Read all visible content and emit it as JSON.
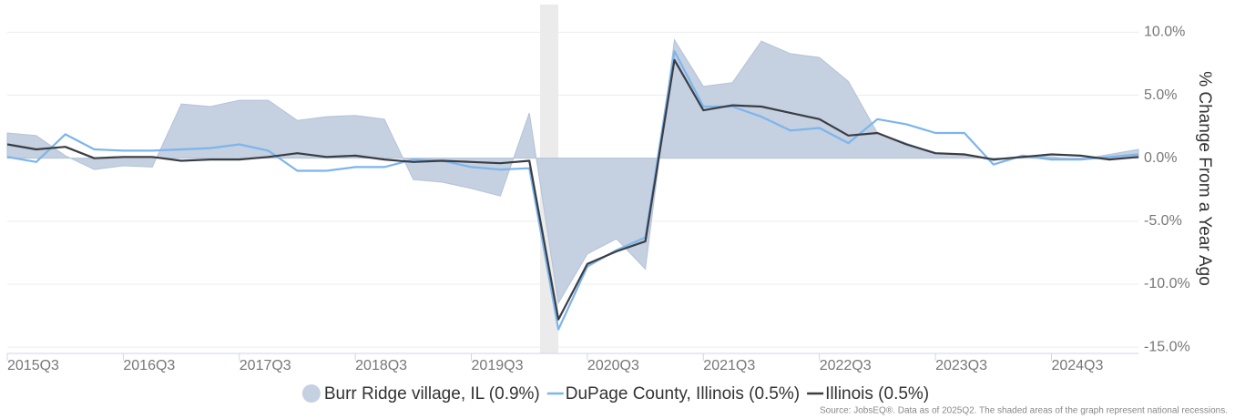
{
  "chart_data": {
    "type": "line",
    "y_label": "% Change From a Year Ago",
    "source": "Source: JobsEQ®. Data as of 2025Q2. The shaded areas of the graph represent national recessions.",
    "categories": [
      "2015Q3",
      null,
      null,
      null,
      "2016Q3",
      null,
      null,
      null,
      "2017Q3",
      null,
      null,
      null,
      "2018Q3",
      null,
      null,
      null,
      "2019Q3",
      null,
      null,
      null,
      "2020Q3",
      null,
      null,
      null,
      "2021Q3",
      null,
      null,
      null,
      "2022Q3",
      null,
      null,
      null,
      "2023Q3",
      null,
      null,
      null,
      "2024Q3",
      null,
      null,
      null
    ],
    "series": [
      {
        "name": "Burr Ridge village, IL (0.9%)",
        "style": "area",
        "color": "#c5d0e1",
        "values": [
          2.0,
          1.8,
          0.2,
          -0.9,
          -0.6,
          -0.7,
          4.3,
          4.1,
          4.6,
          4.6,
          3.0,
          3.3,
          3.4,
          3.1,
          -1.7,
          -1.9,
          -2.4,
          -3.0,
          3.6,
          -11.5,
          -7.6,
          -6.4,
          -8.8,
          9.4,
          5.7,
          6.0,
          9.3,
          8.3,
          8.0,
          6.1,
          2.0,
          1.2,
          0.4,
          0.3,
          -0.2,
          0.2,
          0.1,
          -0.1,
          0.3,
          0.7
        ]
      },
      {
        "name": "DuPage County, Illinois (0.5%)",
        "style": "line",
        "color": "#7cb5ec",
        "values": [
          0.1,
          -0.3,
          1.9,
          0.7,
          0.6,
          0.6,
          0.7,
          0.8,
          1.1,
          0.6,
          -1.0,
          -1.0,
          -0.7,
          -0.7,
          -0.1,
          -0.2,
          -0.7,
          -0.9,
          -0.8,
          -13.6,
          -8.6,
          -7.3,
          -6.3,
          8.5,
          4.1,
          4.1,
          3.3,
          2.2,
          2.4,
          1.2,
          3.1,
          2.7,
          2.0,
          2.0,
          -0.5,
          0.2,
          -0.1,
          -0.1,
          0.1,
          0.3
        ]
      },
      {
        "name": "Illinois (0.5%)",
        "style": "line",
        "color": "#3a3d44",
        "values": [
          1.1,
          0.7,
          0.9,
          0.0,
          0.1,
          0.1,
          -0.2,
          -0.1,
          -0.1,
          0.1,
          0.4,
          0.1,
          0.2,
          -0.1,
          -0.3,
          -0.2,
          -0.3,
          -0.4,
          -0.2,
          -12.8,
          -8.4,
          -7.4,
          -6.6,
          7.8,
          3.8,
          4.2,
          4.1,
          3.6,
          3.1,
          1.8,
          2.0,
          1.1,
          0.4,
          0.3,
          -0.1,
          0.1,
          0.3,
          0.2,
          -0.1,
          0.1
        ]
      }
    ],
    "ylim": [
      -15.5,
      12.2
    ],
    "yticks": [
      {
        "value": -15,
        "label": "-15.0%"
      },
      {
        "value": -10,
        "label": "-10.0%"
      },
      {
        "value": -5,
        "label": "-5.0%"
      },
      {
        "value": 0,
        "label": "0.0%"
      },
      {
        "value": 5,
        "label": "5.0%"
      },
      {
        "value": 10,
        "label": "10.0%"
      }
    ],
    "grid": true
  }
}
